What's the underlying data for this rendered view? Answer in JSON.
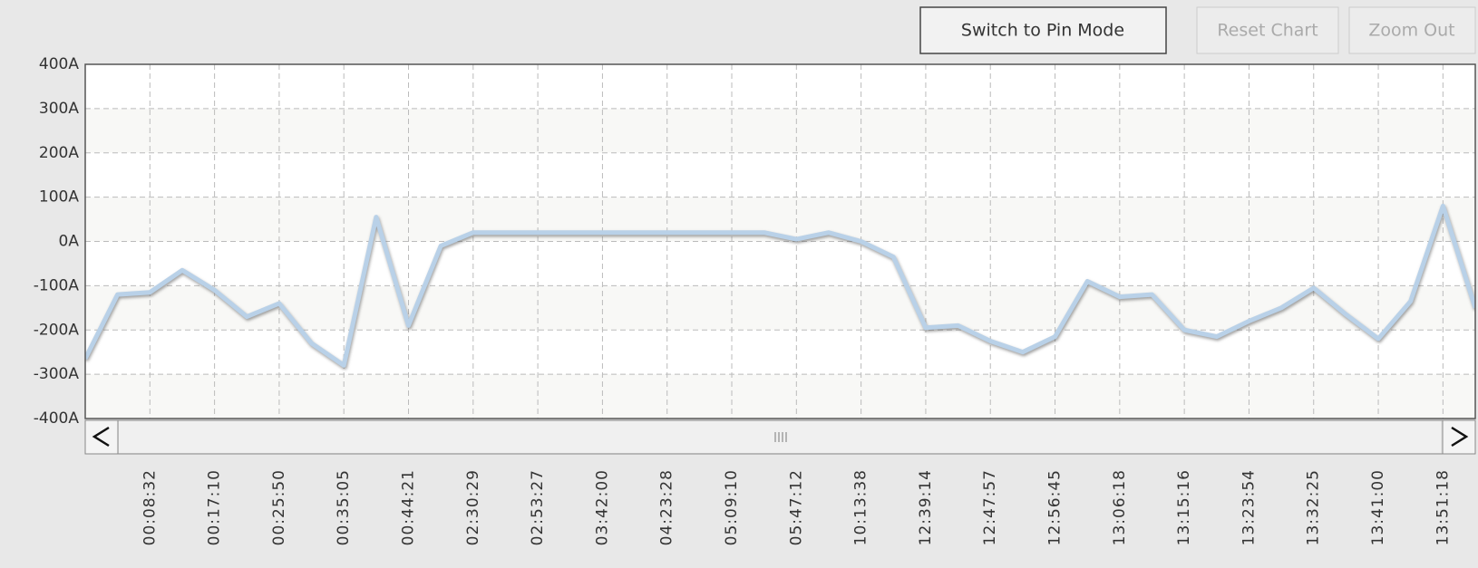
{
  "buttons": [
    "Switch to Pin Mode",
    "Reset Chart",
    "Zoom Out"
  ],
  "chart_data": {
    "type": "line",
    "categories": [
      null,
      null,
      "00:08:32",
      null,
      "00:17:10",
      null,
      "00:25:50",
      null,
      "00:35:05",
      null,
      "00:44:21",
      null,
      "02:30:29",
      null,
      "02:53:27",
      null,
      "03:42:00",
      null,
      "04:23:28",
      null,
      "05:09:10",
      null,
      "05:47:12",
      null,
      "10:13:38",
      null,
      "12:39:14",
      null,
      "12:47:57",
      null,
      "12:56:45",
      null,
      "13:06:18",
      null,
      "13:15:16",
      null,
      "13:23:54",
      null,
      "13:32:25",
      null,
      "13:41:00",
      null,
      "13:51:18",
      null
    ],
    "values": [
      -265,
      -120,
      -115,
      -65,
      -110,
      -170,
      -140,
      -230,
      -280,
      55,
      -190,
      -10,
      20,
      20,
      20,
      20,
      20,
      20,
      20,
      20,
      20,
      20,
      5,
      20,
      0,
      -35,
      -195,
      -190,
      -225,
      -250,
      -215,
      -90,
      -125,
      -120,
      -200,
      -215,
      -180,
      -150,
      -105,
      -165,
      -220,
      -135,
      80,
      -150
    ],
    "color": "#b9d1e8",
    "ylim": [
      -400,
      400
    ],
    "yticks": [
      {
        "value": 400,
        "label": "400A"
      },
      {
        "value": 300,
        "label": "300A"
      },
      {
        "value": 200,
        "label": "200A"
      },
      {
        "value": 100,
        "label": "100A"
      },
      {
        "value": 0,
        "label": "0A"
      },
      {
        "value": -100,
        "label": "-100A"
      },
      {
        "value": -200,
        "label": "-200A"
      },
      {
        "value": -300,
        "label": "-300A"
      },
      {
        "value": -400,
        "label": "-400A"
      }
    ],
    "grid": true
  }
}
